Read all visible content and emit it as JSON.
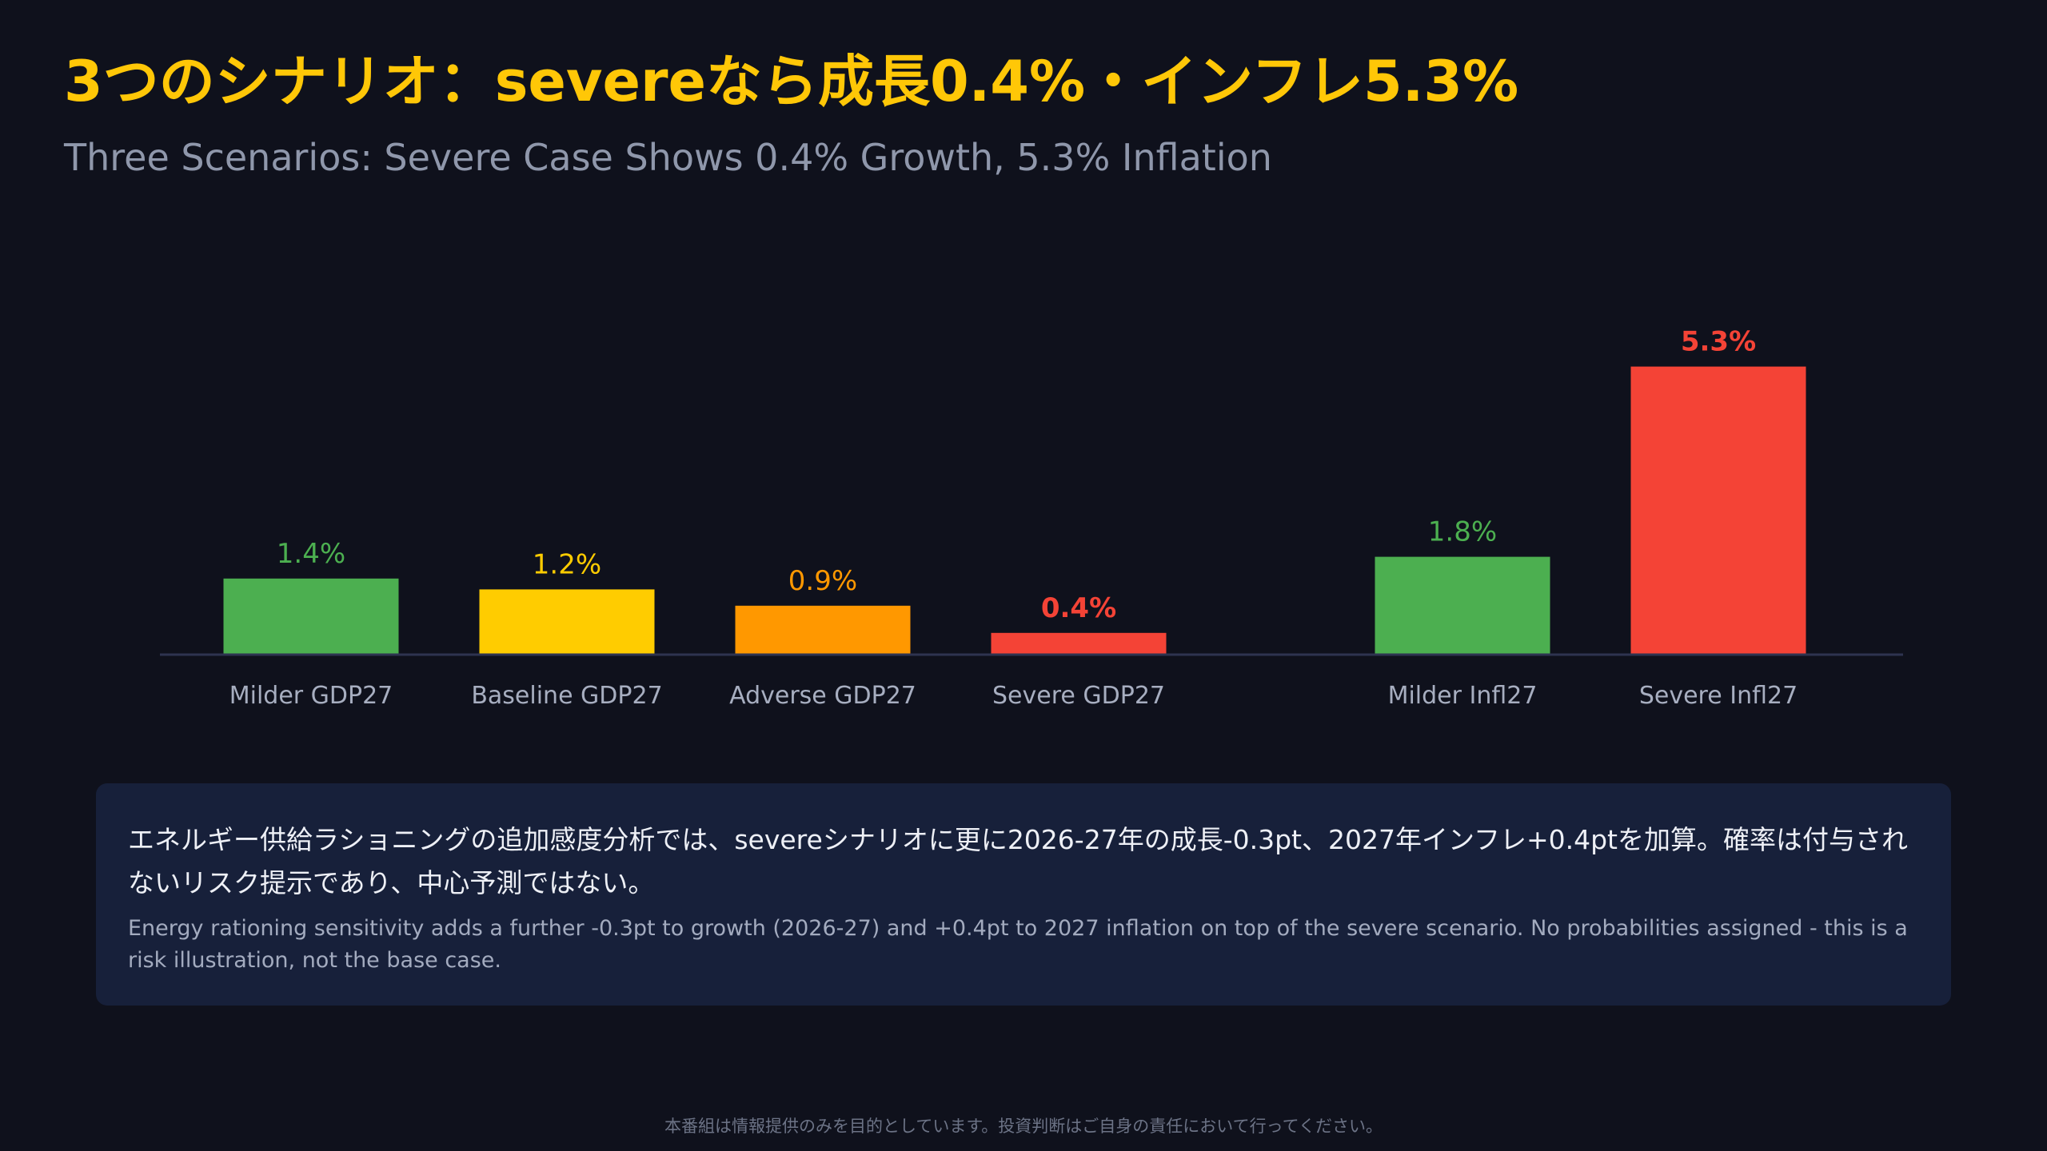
{
  "header": {
    "title_jp": "3つのシナリオ：severeなら成長0.4%・インフレ5.3%",
    "title_en": "Three Scenarios: Severe Case Shows 0.4% Growth, 5.3% Inflation"
  },
  "chart_data": {
    "type": "bar",
    "title": "3つのシナリオ：severeなら成長0.4%・インフレ5.3%",
    "subtitle": "Three Scenarios: Severe Case Shows 0.4% Growth, 5.3% Inflation",
    "categories": [
      "Milder GDP27",
      "Baseline GDP27",
      "Adverse GDP27",
      "Severe GDP27",
      "Milder Infl27",
      "Severe Infl27"
    ],
    "values": [
      1.4,
      1.2,
      0.9,
      0.4,
      1.8,
      5.3
    ],
    "value_labels": [
      "1.4%",
      "1.2%",
      "0.9%",
      "0.4%",
      "1.8%",
      "5.3%"
    ],
    "groups": [
      {
        "name": "GDP27",
        "indices": [
          0,
          1,
          2,
          3
        ]
      },
      {
        "name": "Infl27",
        "indices": [
          4,
          5
        ]
      }
    ],
    "colors": [
      "#4caf50",
      "#ffcc00",
      "#ff9800",
      "#f44336",
      "#4caf50",
      "#f44336"
    ],
    "emphasized": [
      3,
      5
    ],
    "xlabel": "",
    "ylabel": "",
    "ylim": [
      0,
      6.0
    ],
    "grid": false,
    "legend": "none"
  },
  "note": {
    "text_jp": "エネルギー供給ラショニングの追加感度分析では、severeシナリオに更に2026-27年の成長-0.3pt、2027年インフレ+0.4ptを加算。確率は付与されないリスク提示であり、中心予測ではない。",
    "text_en": "Energy rationing sensitivity adds a further -0.3pt to growth (2026-27) and +0.4pt to 2027 inflation on top of the severe scenario. No probabilities assigned - this is a risk illustration, not the base case."
  },
  "footer": {
    "disclaimer": "本番組は情報提供のみを目的としています。投資判断はご自身の責任において行ってください。"
  },
  "colors": {
    "background": "#0f111c",
    "title_accent": "#ffc707",
    "note_background": "#17203a",
    "axis_line": "#2e3350"
  }
}
